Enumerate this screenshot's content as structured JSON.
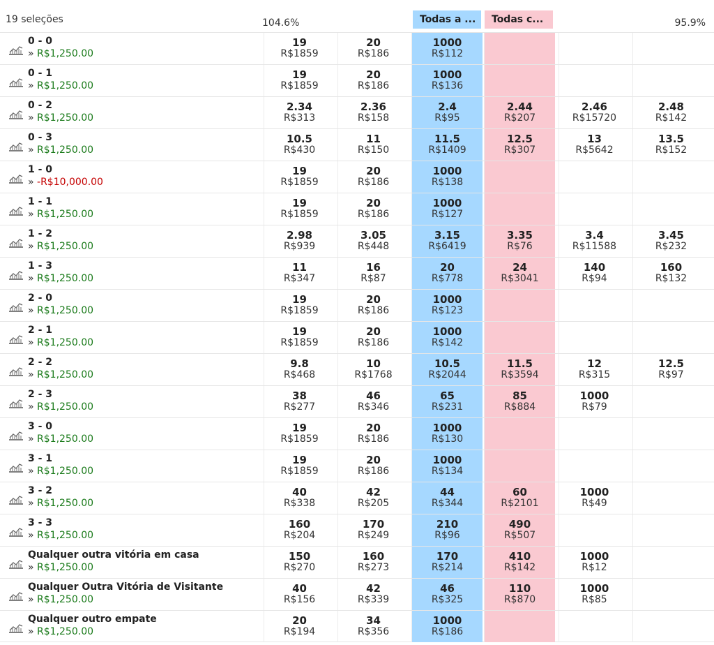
{
  "header": {
    "selections": "19 seleções",
    "back_pct": "104.6%",
    "back_all": "Todas a ...",
    "lay_all": "Todas c...",
    "lay_pct": "95.9%"
  },
  "colors": {
    "back": "#a6d8ff",
    "lay": "#fac9d1",
    "profit": "#1a7a1a",
    "loss": "#c40000"
  },
  "icons": {
    "chart": "line-chart-icon"
  },
  "runners": [
    {
      "name": "0 - 0",
      "arrow": "»",
      "pl": "R$1,250.00",
      "pl_neg": false,
      "cells": [
        {
          "p": "19",
          "s": "R$1859"
        },
        {
          "p": "20",
          "s": "R$186"
        },
        {
          "p": "1000",
          "s": "R$112"
        },
        {
          "p": "",
          "s": ""
        },
        {
          "p": "",
          "s": ""
        },
        {
          "p": "",
          "s": ""
        }
      ]
    },
    {
      "name": "0 - 1",
      "arrow": "»",
      "pl": "R$1,250.00",
      "pl_neg": false,
      "cells": [
        {
          "p": "19",
          "s": "R$1859"
        },
        {
          "p": "20",
          "s": "R$186"
        },
        {
          "p": "1000",
          "s": "R$136"
        },
        {
          "p": "",
          "s": ""
        },
        {
          "p": "",
          "s": ""
        },
        {
          "p": "",
          "s": ""
        }
      ]
    },
    {
      "name": "0 - 2",
      "arrow": "»",
      "pl": "R$1,250.00",
      "pl_neg": false,
      "cells": [
        {
          "p": "2.34",
          "s": "R$313"
        },
        {
          "p": "2.36",
          "s": "R$158"
        },
        {
          "p": "2.4",
          "s": "R$95"
        },
        {
          "p": "2.44",
          "s": "R$207"
        },
        {
          "p": "2.46",
          "s": "R$15720"
        },
        {
          "p": "2.48",
          "s": "R$142"
        }
      ]
    },
    {
      "name": "0 - 3",
      "arrow": "»",
      "pl": "R$1,250.00",
      "pl_neg": false,
      "cells": [
        {
          "p": "10.5",
          "s": "R$430"
        },
        {
          "p": "11",
          "s": "R$150"
        },
        {
          "p": "11.5",
          "s": "R$1409"
        },
        {
          "p": "12.5",
          "s": "R$307"
        },
        {
          "p": "13",
          "s": "R$5642"
        },
        {
          "p": "13.5",
          "s": "R$152"
        }
      ]
    },
    {
      "name": "1 - 0",
      "arrow": "»",
      "pl": "-R$10,000.00",
      "pl_neg": true,
      "cells": [
        {
          "p": "19",
          "s": "R$1859"
        },
        {
          "p": "20",
          "s": "R$186"
        },
        {
          "p": "1000",
          "s": "R$138"
        },
        {
          "p": "",
          "s": ""
        },
        {
          "p": "",
          "s": ""
        },
        {
          "p": "",
          "s": ""
        }
      ]
    },
    {
      "name": "1 - 1",
      "arrow": "»",
      "pl": "R$1,250.00",
      "pl_neg": false,
      "cells": [
        {
          "p": "19",
          "s": "R$1859"
        },
        {
          "p": "20",
          "s": "R$186"
        },
        {
          "p": "1000",
          "s": "R$127"
        },
        {
          "p": "",
          "s": ""
        },
        {
          "p": "",
          "s": ""
        },
        {
          "p": "",
          "s": ""
        }
      ]
    },
    {
      "name": "1 - 2",
      "arrow": "»",
      "pl": "R$1,250.00",
      "pl_neg": false,
      "cells": [
        {
          "p": "2.98",
          "s": "R$939"
        },
        {
          "p": "3.05",
          "s": "R$448"
        },
        {
          "p": "3.15",
          "s": "R$6419"
        },
        {
          "p": "3.35",
          "s": "R$76"
        },
        {
          "p": "3.4",
          "s": "R$11588"
        },
        {
          "p": "3.45",
          "s": "R$232"
        }
      ]
    },
    {
      "name": "1 - 3",
      "arrow": "»",
      "pl": "R$1,250.00",
      "pl_neg": false,
      "cells": [
        {
          "p": "11",
          "s": "R$347"
        },
        {
          "p": "16",
          "s": "R$87"
        },
        {
          "p": "20",
          "s": "R$778"
        },
        {
          "p": "24",
          "s": "R$3041"
        },
        {
          "p": "140",
          "s": "R$94"
        },
        {
          "p": "160",
          "s": "R$132"
        }
      ]
    },
    {
      "name": "2 - 0",
      "arrow": "»",
      "pl": "R$1,250.00",
      "pl_neg": false,
      "cells": [
        {
          "p": "19",
          "s": "R$1859"
        },
        {
          "p": "20",
          "s": "R$186"
        },
        {
          "p": "1000",
          "s": "R$123"
        },
        {
          "p": "",
          "s": ""
        },
        {
          "p": "",
          "s": ""
        },
        {
          "p": "",
          "s": ""
        }
      ]
    },
    {
      "name": "2 - 1",
      "arrow": "»",
      "pl": "R$1,250.00",
      "pl_neg": false,
      "cells": [
        {
          "p": "19",
          "s": "R$1859"
        },
        {
          "p": "20",
          "s": "R$186"
        },
        {
          "p": "1000",
          "s": "R$142"
        },
        {
          "p": "",
          "s": ""
        },
        {
          "p": "",
          "s": ""
        },
        {
          "p": "",
          "s": ""
        }
      ]
    },
    {
      "name": "2 - 2",
      "arrow": "»",
      "pl": "R$1,250.00",
      "pl_neg": false,
      "cells": [
        {
          "p": "9.8",
          "s": "R$468"
        },
        {
          "p": "10",
          "s": "R$1768"
        },
        {
          "p": "10.5",
          "s": "R$2044"
        },
        {
          "p": "11.5",
          "s": "R$3594"
        },
        {
          "p": "12",
          "s": "R$315"
        },
        {
          "p": "12.5",
          "s": "R$97"
        }
      ]
    },
    {
      "name": "2 - 3",
      "arrow": "»",
      "pl": "R$1,250.00",
      "pl_neg": false,
      "cells": [
        {
          "p": "38",
          "s": "R$277"
        },
        {
          "p": "46",
          "s": "R$346"
        },
        {
          "p": "65",
          "s": "R$231"
        },
        {
          "p": "85",
          "s": "R$884"
        },
        {
          "p": "1000",
          "s": "R$79"
        },
        {
          "p": "",
          "s": ""
        }
      ]
    },
    {
      "name": "3 - 0",
      "arrow": "»",
      "pl": "R$1,250.00",
      "pl_neg": false,
      "cells": [
        {
          "p": "19",
          "s": "R$1859"
        },
        {
          "p": "20",
          "s": "R$186"
        },
        {
          "p": "1000",
          "s": "R$130"
        },
        {
          "p": "",
          "s": ""
        },
        {
          "p": "",
          "s": ""
        },
        {
          "p": "",
          "s": ""
        }
      ]
    },
    {
      "name": "3 - 1",
      "arrow": "»",
      "pl": "R$1,250.00",
      "pl_neg": false,
      "cells": [
        {
          "p": "19",
          "s": "R$1859"
        },
        {
          "p": "20",
          "s": "R$186"
        },
        {
          "p": "1000",
          "s": "R$134"
        },
        {
          "p": "",
          "s": ""
        },
        {
          "p": "",
          "s": ""
        },
        {
          "p": "",
          "s": ""
        }
      ]
    },
    {
      "name": "3 - 2",
      "arrow": "»",
      "pl": "R$1,250.00",
      "pl_neg": false,
      "cells": [
        {
          "p": "40",
          "s": "R$338"
        },
        {
          "p": "42",
          "s": "R$205"
        },
        {
          "p": "44",
          "s": "R$344"
        },
        {
          "p": "60",
          "s": "R$2101"
        },
        {
          "p": "1000",
          "s": "R$49"
        },
        {
          "p": "",
          "s": ""
        }
      ]
    },
    {
      "name": "3 - 3",
      "arrow": "»",
      "pl": "R$1,250.00",
      "pl_neg": false,
      "cells": [
        {
          "p": "160",
          "s": "R$204"
        },
        {
          "p": "170",
          "s": "R$249"
        },
        {
          "p": "210",
          "s": "R$96"
        },
        {
          "p": "490",
          "s": "R$507"
        },
        {
          "p": "",
          "s": ""
        },
        {
          "p": "",
          "s": ""
        }
      ]
    },
    {
      "name": "Qualquer outra vitória em casa",
      "arrow": "»",
      "pl": "R$1,250.00",
      "pl_neg": false,
      "cells": [
        {
          "p": "150",
          "s": "R$270"
        },
        {
          "p": "160",
          "s": "R$273"
        },
        {
          "p": "170",
          "s": "R$214"
        },
        {
          "p": "410",
          "s": "R$142"
        },
        {
          "p": "1000",
          "s": "R$12"
        },
        {
          "p": "",
          "s": ""
        }
      ]
    },
    {
      "name": "Qualquer Outra Vitória de Visitante",
      "arrow": "»",
      "pl": "R$1,250.00",
      "pl_neg": false,
      "cells": [
        {
          "p": "40",
          "s": "R$156"
        },
        {
          "p": "42",
          "s": "R$339"
        },
        {
          "p": "46",
          "s": "R$325"
        },
        {
          "p": "110",
          "s": "R$870"
        },
        {
          "p": "1000",
          "s": "R$85"
        },
        {
          "p": "",
          "s": ""
        }
      ]
    },
    {
      "name": "Qualquer outro empate",
      "arrow": "»",
      "pl": "R$1,250.00",
      "pl_neg": false,
      "cells": [
        {
          "p": "20",
          "s": "R$194"
        },
        {
          "p": "34",
          "s": "R$356"
        },
        {
          "p": "1000",
          "s": "R$186"
        },
        {
          "p": "",
          "s": ""
        },
        {
          "p": "",
          "s": ""
        },
        {
          "p": "",
          "s": ""
        }
      ]
    }
  ]
}
